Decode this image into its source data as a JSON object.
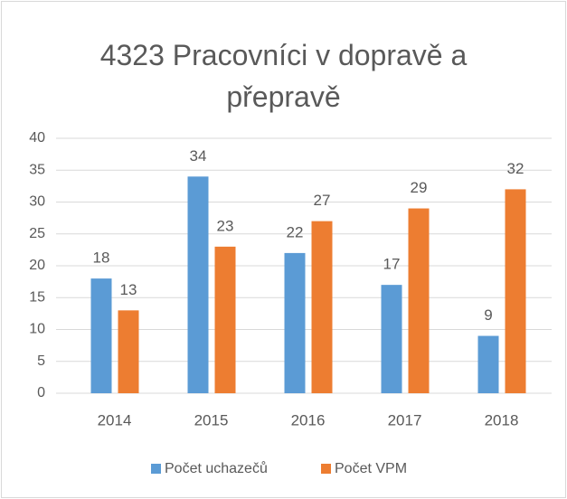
{
  "chart_data": {
    "type": "bar",
    "title": "4323 Pracovníci v dopravě a přepravě",
    "categories": [
      "2014",
      "2015",
      "2016",
      "2017",
      "2018"
    ],
    "series": [
      {
        "name": "Počet uchazečů",
        "color": "#5b9bd5",
        "values": [
          18,
          34,
          22,
          17,
          9
        ]
      },
      {
        "name": "Počet VPM",
        "color": "#ed7d31",
        "values": [
          13,
          23,
          27,
          29,
          32
        ]
      }
    ],
    "ylim": [
      0,
      40
    ],
    "yticks": [
      0,
      5,
      10,
      15,
      20,
      25,
      30,
      35,
      40
    ],
    "grid": true,
    "legend": "bottom"
  }
}
